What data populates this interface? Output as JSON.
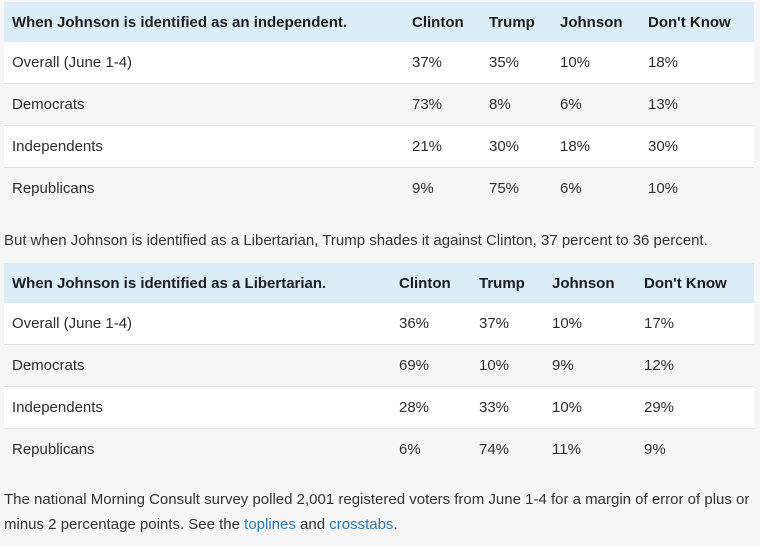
{
  "table1": {
    "header": [
      "When Johnson is identified as an independent.",
      "Clinton",
      "Trump",
      "Johnson",
      "Don't Know"
    ],
    "rows": [
      [
        "Overall (June 1-4)",
        "37%",
        "35%",
        "10%",
        "18%"
      ],
      [
        "Democrats",
        "73%",
        "8%",
        "6%",
        "13%"
      ],
      [
        "Independents",
        "21%",
        "30%",
        "18%",
        "30%"
      ],
      [
        "Republicans",
        "9%",
        "75%",
        "6%",
        "10%"
      ]
    ]
  },
  "paragraph1": "But when Johnson is identified as a Libertarian, Trump shades it against Clinton, 37 percent to 36 percent.",
  "table2": {
    "header": [
      "When Johnson is identified as a Libertarian.",
      "Clinton",
      "Trump",
      "Johnson",
      "Don't Know"
    ],
    "rows": [
      [
        "Overall (June 1-4)",
        "36%",
        "37%",
        "10%",
        "17%"
      ],
      [
        "Democrats",
        "69%",
        "10%",
        "9%",
        "12%"
      ],
      [
        "Independents",
        "28%",
        "33%",
        "10%",
        "29%"
      ],
      [
        "Republicans",
        "6%",
        "74%",
        "11%",
        "9%"
      ]
    ]
  },
  "paragraph2": {
    "text_before": "The national Morning Consult survey polled 2,001 registered voters from June 1-4 for a margin of error of plus or minus 2 percentage points. See the ",
    "link1": "toplines",
    "text_between": " and ",
    "link2": "crosstabs",
    "text_after": "."
  }
}
